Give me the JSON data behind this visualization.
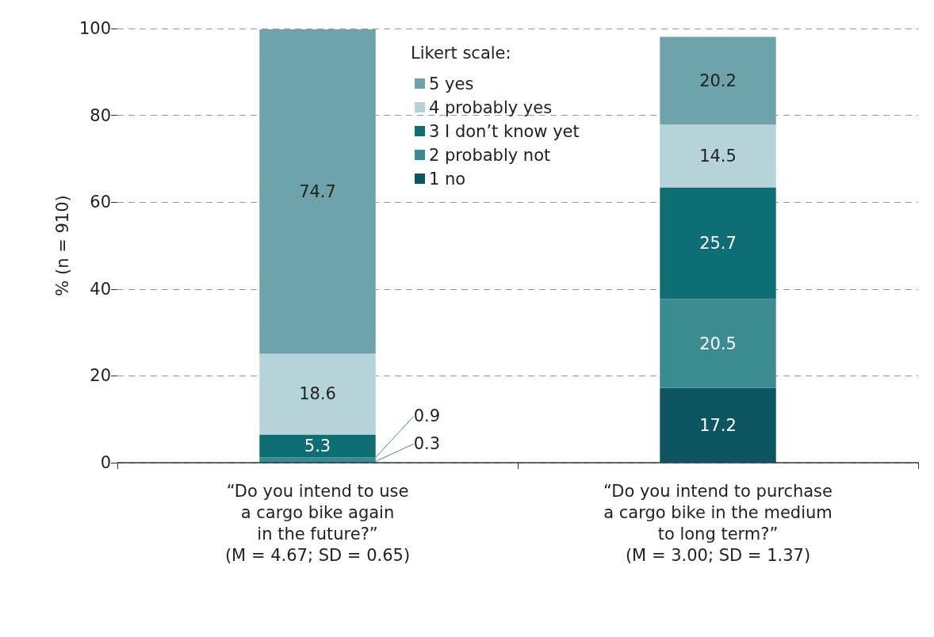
{
  "chart_data": {
    "type": "bar",
    "stacked": true,
    "categories": [
      "“Do you intend to use\na cargo bike again\nin the future?”\n(M = 4.67; SD = 0.65)",
      "“Do you intend to purchase\na cargo bike in the medium\nto long term?”\n(M = 3.00; SD = 1.37)"
    ],
    "series": [
      {
        "name": "1 no",
        "color": "#0d5560",
        "values": [
          0.3,
          17.2
        ]
      },
      {
        "name": "2 probably not",
        "color": "#3b8c92",
        "values": [
          0.9,
          20.5
        ]
      },
      {
        "name": "3 I don’t know yet",
        "color": "#0e6e73",
        "values": [
          5.3,
          25.7
        ]
      },
      {
        "name": "4 probably yes",
        "color": "#b5d3d8",
        "values": [
          18.6,
          14.5
        ]
      },
      {
        "name": "5 yes",
        "color": "#6fa3ab",
        "values": [
          74.7,
          20.2
        ]
      }
    ],
    "ylabel": "% (n = 910)",
    "legend_title": "Likert scale:",
    "legend": "top",
    "ylim": [
      0,
      100
    ],
    "yticks": [
      0,
      20,
      40,
      60,
      80,
      100
    ],
    "grid": "y",
    "data_labels": true
  }
}
